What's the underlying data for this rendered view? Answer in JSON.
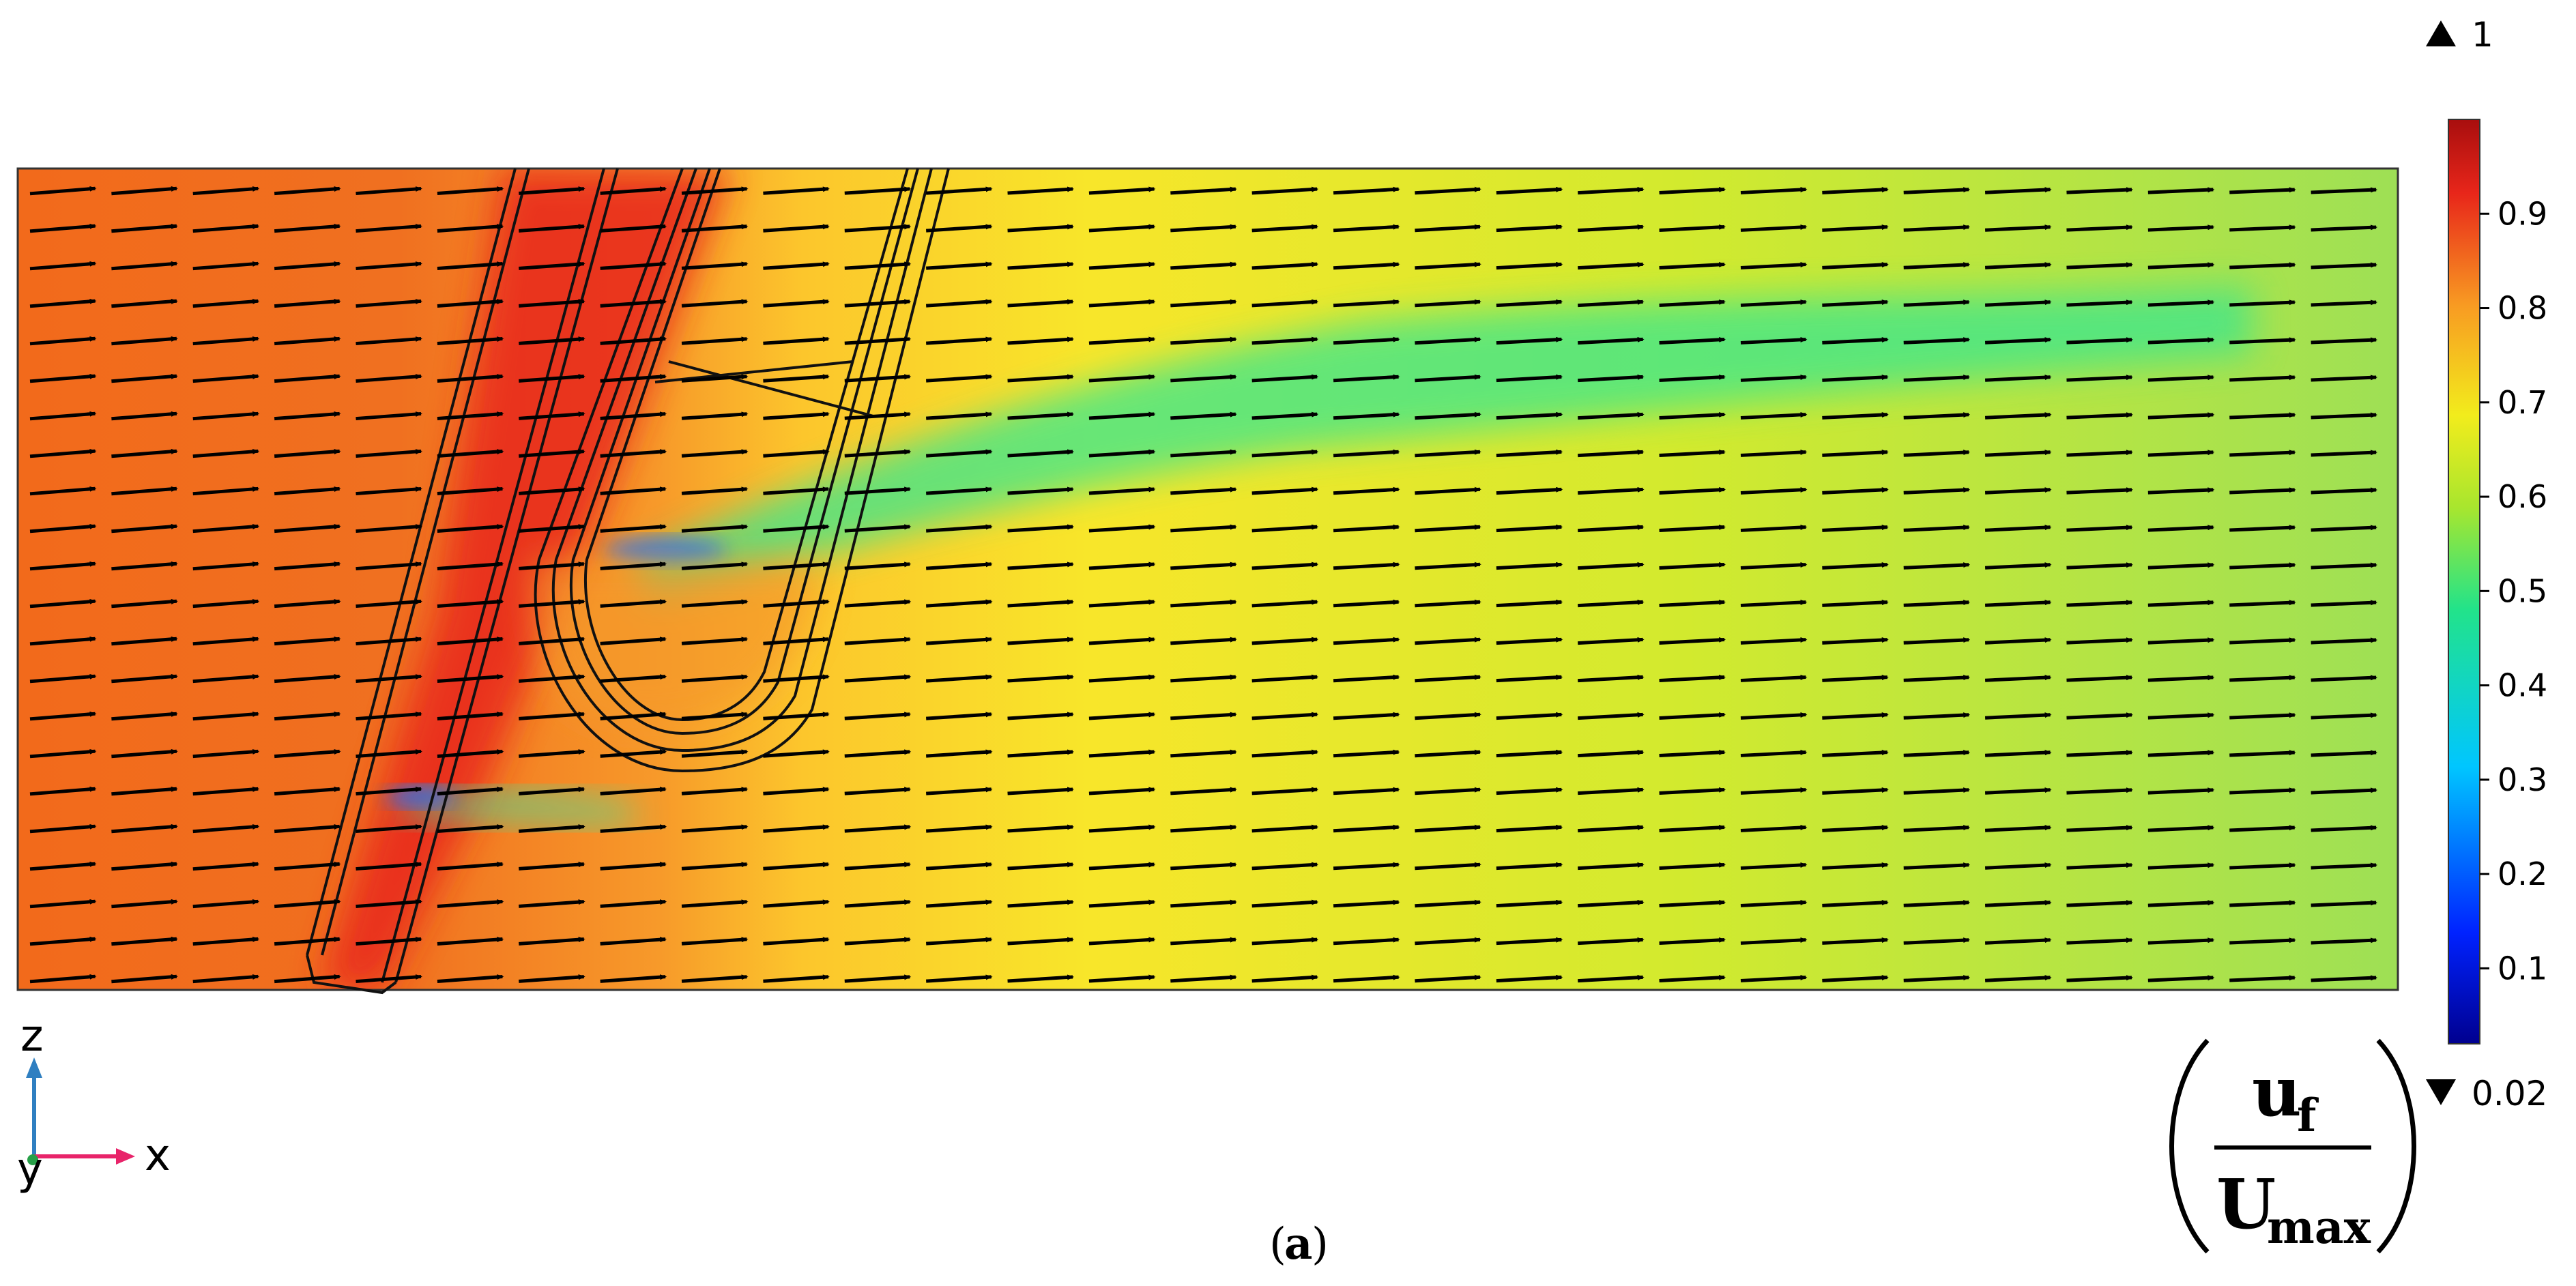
{
  "chart_data": {
    "type": "heatmap",
    "title": "",
    "caption_letter": "a",
    "xlabel": "x",
    "ylabel": "z",
    "third_axis_label": "y",
    "colorbar": {
      "quantity_numerator": "u",
      "quantity_numerator_sub": "f",
      "quantity_denominator": "U",
      "quantity_denominator_sub": "max",
      "min_label": "0.02",
      "max_label": "1",
      "min": 0.02,
      "max": 1,
      "ticks": [
        0.1,
        0.2,
        0.3,
        0.4,
        0.5,
        0.6,
        0.7,
        0.8,
        0.9
      ],
      "tick_labels": [
        "0.1",
        "0.2",
        "0.3",
        "0.4",
        "0.5",
        "0.6",
        "0.7",
        "0.8",
        "0.9"
      ],
      "colormap": "rainbow"
    },
    "arrow_grid": {
      "columns": 29,
      "rows": 22
    },
    "field": {
      "inflow_value": 0.82,
      "outflow_value": 0.6,
      "wake_value": 0.48,
      "jet_value": 0.93,
      "stagnation_value": 0.1
    },
    "colors": {
      "axis_x": "#e8246a",
      "axis_z": "#2f7fc1",
      "axis_y": "#27a048"
    }
  }
}
